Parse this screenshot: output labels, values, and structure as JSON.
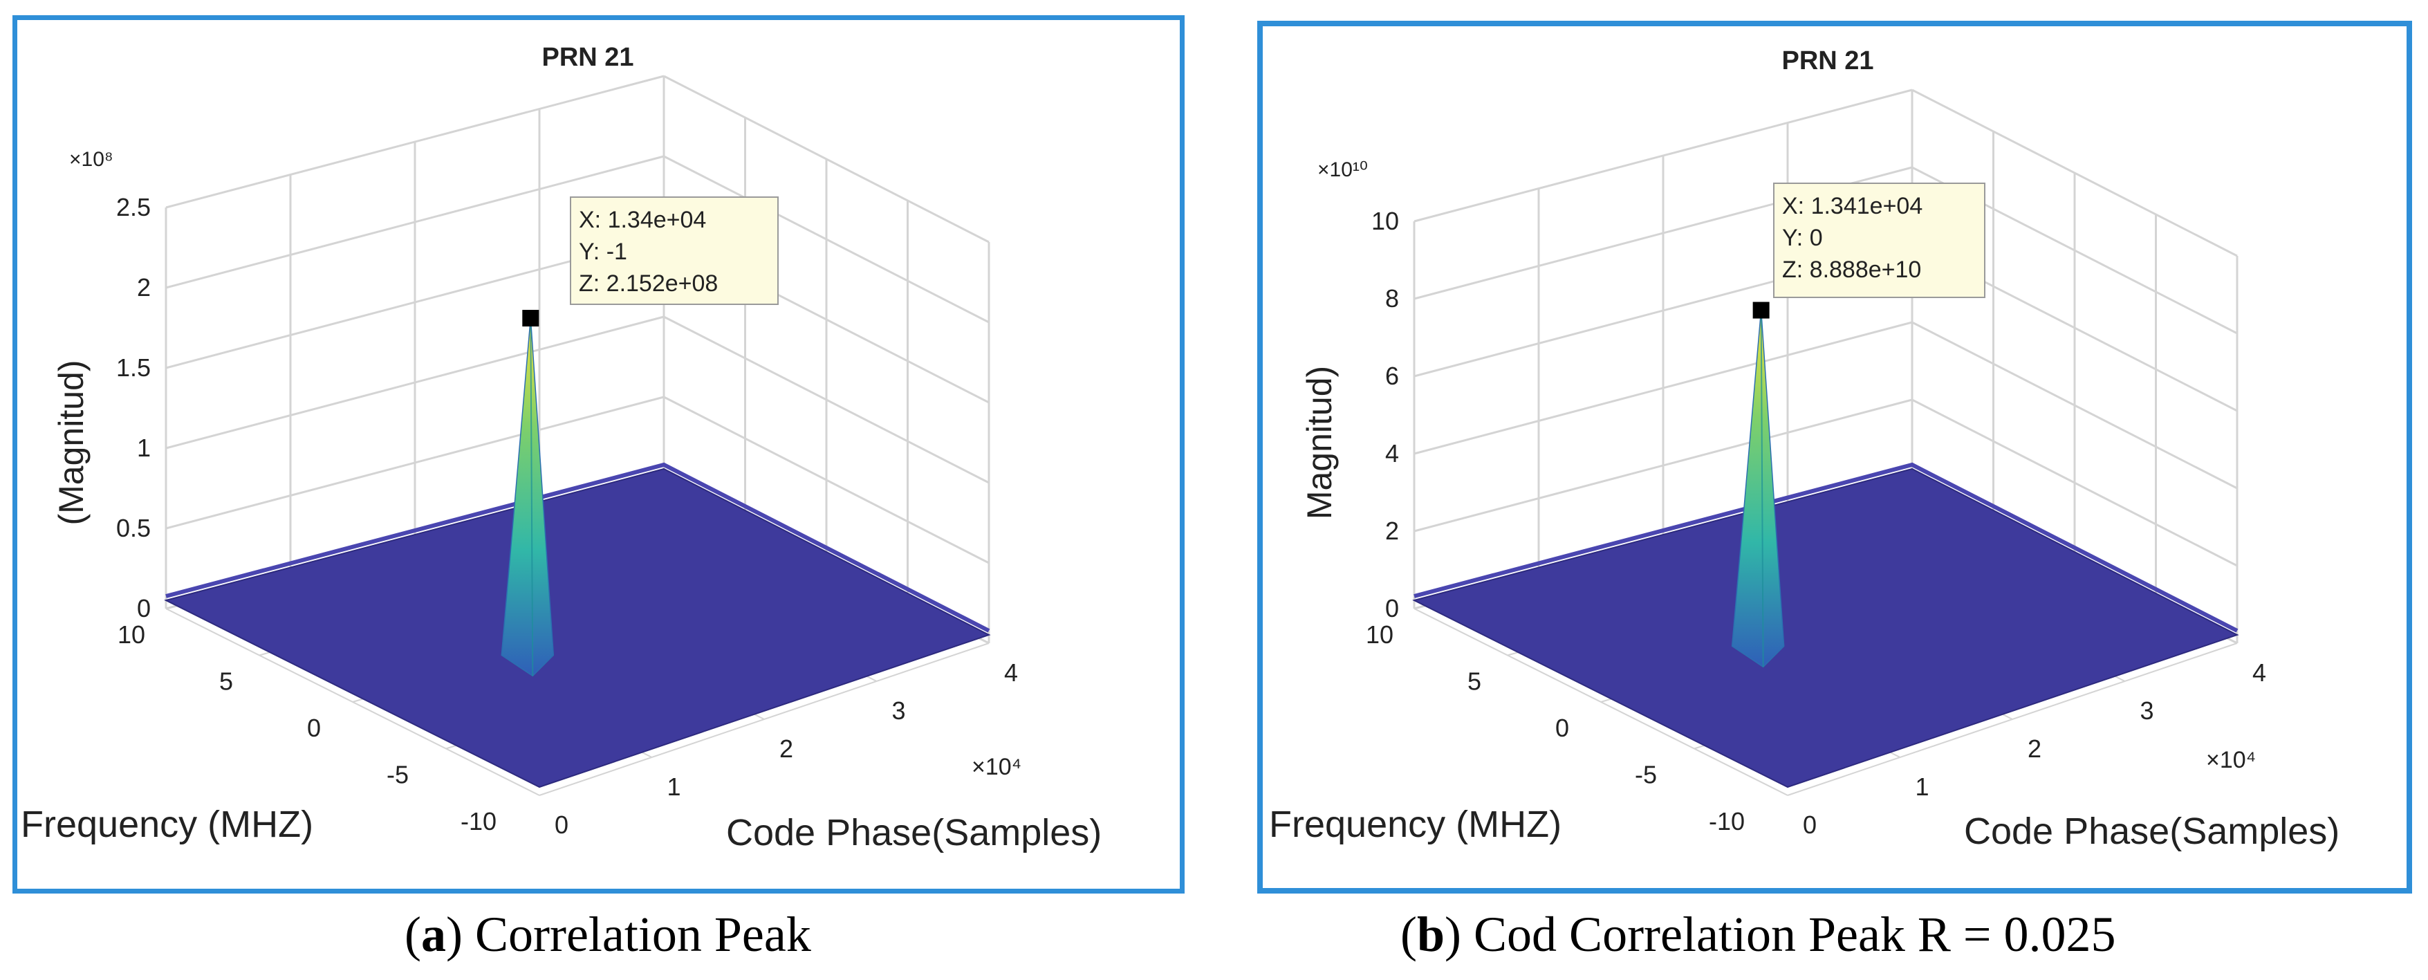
{
  "captions": [
    {
      "letter": "a",
      "text": "Correlation Peak"
    },
    {
      "letter": "b",
      "text": "Cod Correlation Peak R = 0.025"
    }
  ],
  "colors": {
    "frame": "#2f8fd8",
    "surface": "#3e3a9c",
    "peak_top": "#f4e33a",
    "peak_mid": "#31b7a8",
    "grid": "#d4d4d4"
  },
  "chart_data": [
    {
      "type": "surface",
      "title": "PRN 21",
      "xlabel": "Code Phase(Samples)",
      "ylabel": "Frequency (MHZ)",
      "zlabel": "(Magnitud)",
      "x_exponent": "×10⁴",
      "z_exponent": "×10⁸",
      "xlim": [
        0,
        4
      ],
      "ylim": [
        -10,
        10
      ],
      "zlim": [
        0,
        2.5
      ],
      "x_ticks": [
        "0",
        "1",
        "2",
        "3",
        "4"
      ],
      "y_ticks": [
        "10",
        "5",
        "0",
        "-5",
        "-10"
      ],
      "z_ticks": [
        "0",
        "0.5",
        "1",
        "1.5",
        "2",
        "2.5"
      ],
      "peak": {
        "x": 13400,
        "y": -1,
        "z": 215200000
      },
      "datatip": [
        "X: 1.34e+04",
        "Y: -1",
        "Z: 2.152e+08"
      ]
    },
    {
      "type": "surface",
      "title": "PRN 21",
      "xlabel": "Code Phase(Samples)",
      "ylabel": "Frequency (MHZ)",
      "zlabel": "Magnitud)",
      "x_exponent": "×10⁴",
      "z_exponent": "×10¹⁰",
      "xlim": [
        0,
        4
      ],
      "ylim": [
        -10,
        10
      ],
      "zlim": [
        0,
        10
      ],
      "x_ticks": [
        "0",
        "1",
        "2",
        "3",
        "4"
      ],
      "y_ticks": [
        "10",
        "5",
        "0",
        "-5",
        "-10"
      ],
      "z_ticks": [
        "0",
        "2",
        "4",
        "6",
        "8",
        "10"
      ],
      "peak": {
        "x": 13410,
        "y": 0,
        "z": 88880000000
      },
      "datatip": [
        "X: 1.341e+04",
        "Y: 0",
        "Z: 8.888e+10"
      ]
    }
  ]
}
